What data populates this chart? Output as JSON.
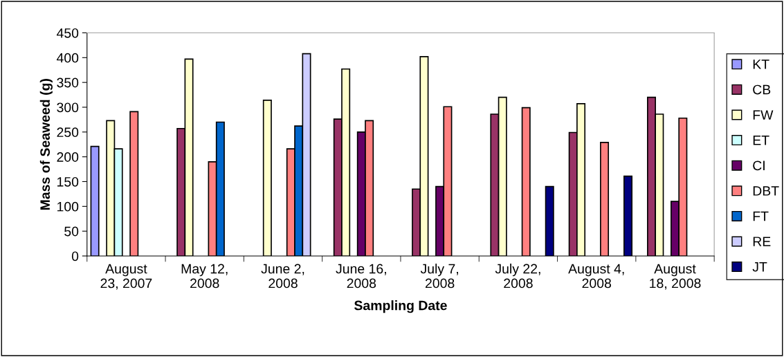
{
  "chart_data": {
    "type": "bar",
    "xlabel": "Sampling Date",
    "ylabel": "Mass of Seaweed (g)",
    "categories": [
      "August\n23, 2007",
      "May 12,\n2008",
      "June 2,\n2008",
      "June 16,\n2008",
      "July 7,\n2008",
      "July 22,\n2008",
      "August 4,\n2008",
      "August\n18, 2008"
    ],
    "series": [
      {
        "name": "KT",
        "color": "#9999ff",
        "values": [
          221,
          null,
          null,
          null,
          null,
          null,
          null,
          null
        ]
      },
      {
        "name": "CB",
        "color": "#993366",
        "values": [
          null,
          257,
          null,
          276,
          135,
          286,
          249,
          320
        ]
      },
      {
        "name": "FW",
        "color": "#ffffcc",
        "values": [
          273,
          397,
          314,
          377,
          402,
          320,
          307,
          286
        ]
      },
      {
        "name": "ET",
        "color": "#ccffff",
        "values": [
          216,
          null,
          null,
          null,
          null,
          null,
          null,
          null
        ]
      },
      {
        "name": "CI",
        "color": "#660066",
        "values": [
          null,
          null,
          null,
          250,
          140,
          null,
          null,
          110
        ]
      },
      {
        "name": "DBT",
        "color": "#ff8080",
        "values": [
          291,
          190,
          216,
          273,
          301,
          299,
          229,
          278
        ]
      },
      {
        "name": "FT",
        "color": "#0066cc",
        "values": [
          null,
          270,
          262,
          null,
          null,
          null,
          null,
          null
        ]
      },
      {
        "name": "RE",
        "color": "#ccccff",
        "values": [
          null,
          null,
          408,
          null,
          null,
          null,
          null,
          null
        ]
      },
      {
        "name": "JT",
        "color": "#000080",
        "values": [
          null,
          null,
          null,
          null,
          null,
          140,
          161,
          null
        ]
      }
    ],
    "ylim": [
      0,
      450
    ],
    "yticks": [
      0,
      50,
      100,
      150,
      200,
      250,
      300,
      350,
      400,
      450
    ],
    "grid": false,
    "legend": "right"
  }
}
